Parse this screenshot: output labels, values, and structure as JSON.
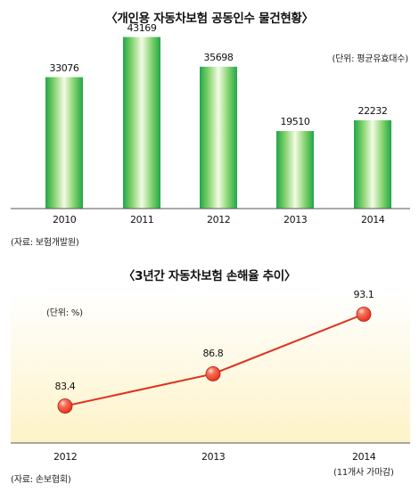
{
  "chart_data": [
    {
      "type": "bar",
      "title": "〈개인용 자동차보험 공동인수 물건현황〉",
      "unit_note": "(단위: 평균유효대수)",
      "source": "(자료: 보험개발원)",
      "categories": [
        "2010",
        "2011",
        "2012",
        "2013",
        "2014"
      ],
      "values": [
        33076,
        43169,
        35698,
        19510,
        22232
      ],
      "ylim": [
        0,
        48000
      ],
      "grid": false,
      "colors": {
        "bar_center": "#f4fbe4",
        "bar_mid": "#7cd068",
        "bar_edge": "#22a64a"
      }
    },
    {
      "type": "line",
      "title": "〈3년간 자동차보험 손해율 추이〉",
      "unit_note": "(단위: %)",
      "source": "(자료: 손보협회)",
      "categories": [
        "2012",
        "2013",
        "2014"
      ],
      "category_notes": [
        "",
        "",
        "(11개사 가마감)"
      ],
      "values": [
        83.4,
        86.8,
        93.1
      ],
      "ylim": [
        79.5,
        95.5
      ],
      "grid": false,
      "colors": {
        "line": "#e0301e",
        "marker": "#e8321f",
        "panel_top": "#ffffff",
        "panel_bottom": "#fdf3c8"
      }
    }
  ]
}
